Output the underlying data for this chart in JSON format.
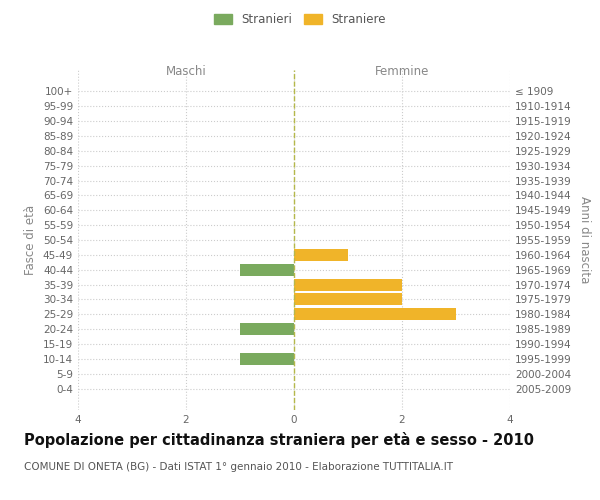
{
  "age_groups": [
    "100+",
    "95-99",
    "90-94",
    "85-89",
    "80-84",
    "75-79",
    "70-74",
    "65-69",
    "60-64",
    "55-59",
    "50-54",
    "45-49",
    "40-44",
    "35-39",
    "30-34",
    "25-29",
    "20-24",
    "15-19",
    "10-14",
    "5-9",
    "0-4"
  ],
  "birth_years": [
    "≤ 1909",
    "1910-1914",
    "1915-1919",
    "1920-1924",
    "1925-1929",
    "1930-1934",
    "1935-1939",
    "1940-1944",
    "1945-1949",
    "1950-1954",
    "1955-1959",
    "1960-1964",
    "1965-1969",
    "1970-1974",
    "1975-1979",
    "1980-1984",
    "1985-1989",
    "1990-1994",
    "1995-1999",
    "2000-2004",
    "2005-2009"
  ],
  "males": [
    0,
    0,
    0,
    0,
    0,
    0,
    0,
    0,
    0,
    0,
    0,
    0,
    -1,
    0,
    0,
    0,
    -1,
    0,
    -1,
    0,
    0
  ],
  "females": [
    0,
    0,
    0,
    0,
    0,
    0,
    0,
    0,
    0,
    0,
    0,
    1,
    0,
    2,
    2,
    3,
    0,
    0,
    0,
    0,
    0
  ],
  "male_color": "#7aaa5e",
  "female_color": "#f0b429",
  "background_color": "#ffffff",
  "grid_color": "#cccccc",
  "title": "Popolazione per cittadinanza straniera per età e sesso - 2010",
  "subtitle": "COMUNE DI ONETA (BG) - Dati ISTAT 1° gennaio 2010 - Elaborazione TUTTITALIA.IT",
  "xlabel_left": "Maschi",
  "xlabel_right": "Femmine",
  "ylabel_left": "Fasce di età",
  "ylabel_right": "Anni di nascita",
  "legend_male": "Stranieri",
  "legend_female": "Straniere",
  "xlim": [
    -4,
    4
  ],
  "xticks": [
    -4,
    -2,
    0,
    2,
    4
  ],
  "xticklabels": [
    "4",
    "2",
    "0",
    "2",
    "4"
  ],
  "bar_height": 0.8,
  "center_line_color": "#b5b84a",
  "title_fontsize": 10.5,
  "subtitle_fontsize": 7.5,
  "tick_fontsize": 7.5,
  "label_fontsize": 8.5
}
